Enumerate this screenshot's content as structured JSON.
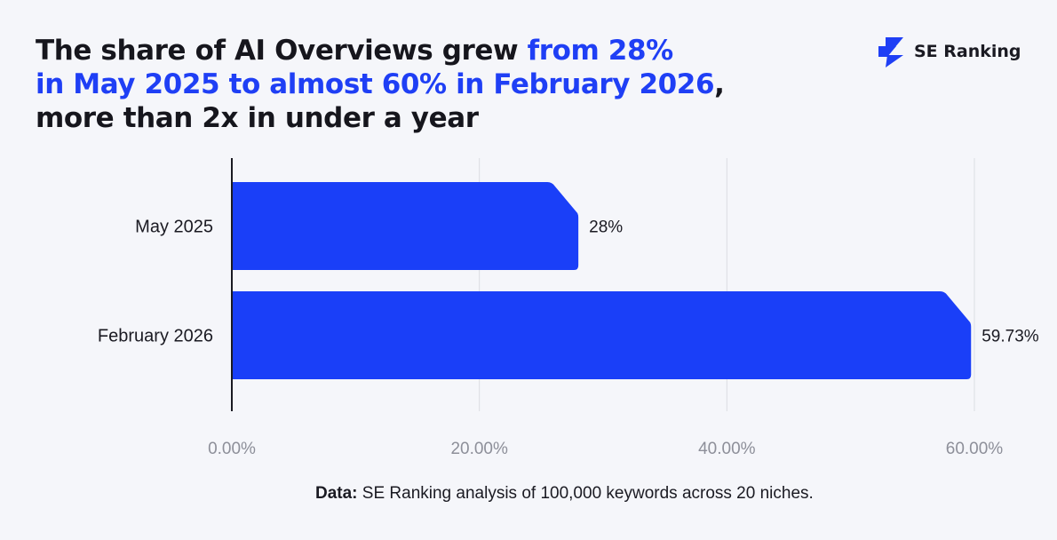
{
  "title": {
    "part1": "The share of AI Overviews grew ",
    "part2": "from 28%",
    "part3": "in May 2025 to almost 60% in February 2026",
    "part4": ",",
    "part5": "more than 2x in under a year"
  },
  "logo": {
    "text": "SE Ranking",
    "icon": "lightning-icon"
  },
  "footnote": {
    "label": "Data:",
    "text": " SE Ranking analysis of 100,000 keywords across 20 niches."
  },
  "colors": {
    "accent": "#1f3ff5",
    "bar": "#1a3ff8",
    "grid": "#dcdde3",
    "background": "#f5f6fa"
  },
  "chart_data": {
    "type": "bar",
    "orientation": "horizontal",
    "categories": [
      "May 2025",
      "February 2026"
    ],
    "values": [
      28,
      59.73
    ],
    "value_labels": [
      "28%",
      "59.73%"
    ],
    "xlim": [
      0,
      60
    ],
    "xticks": [
      0,
      20,
      40,
      60
    ],
    "xtick_labels": [
      "0.00%",
      "20.00%",
      "40.00%",
      "60.00%"
    ],
    "grid": true,
    "legend": "none"
  }
}
